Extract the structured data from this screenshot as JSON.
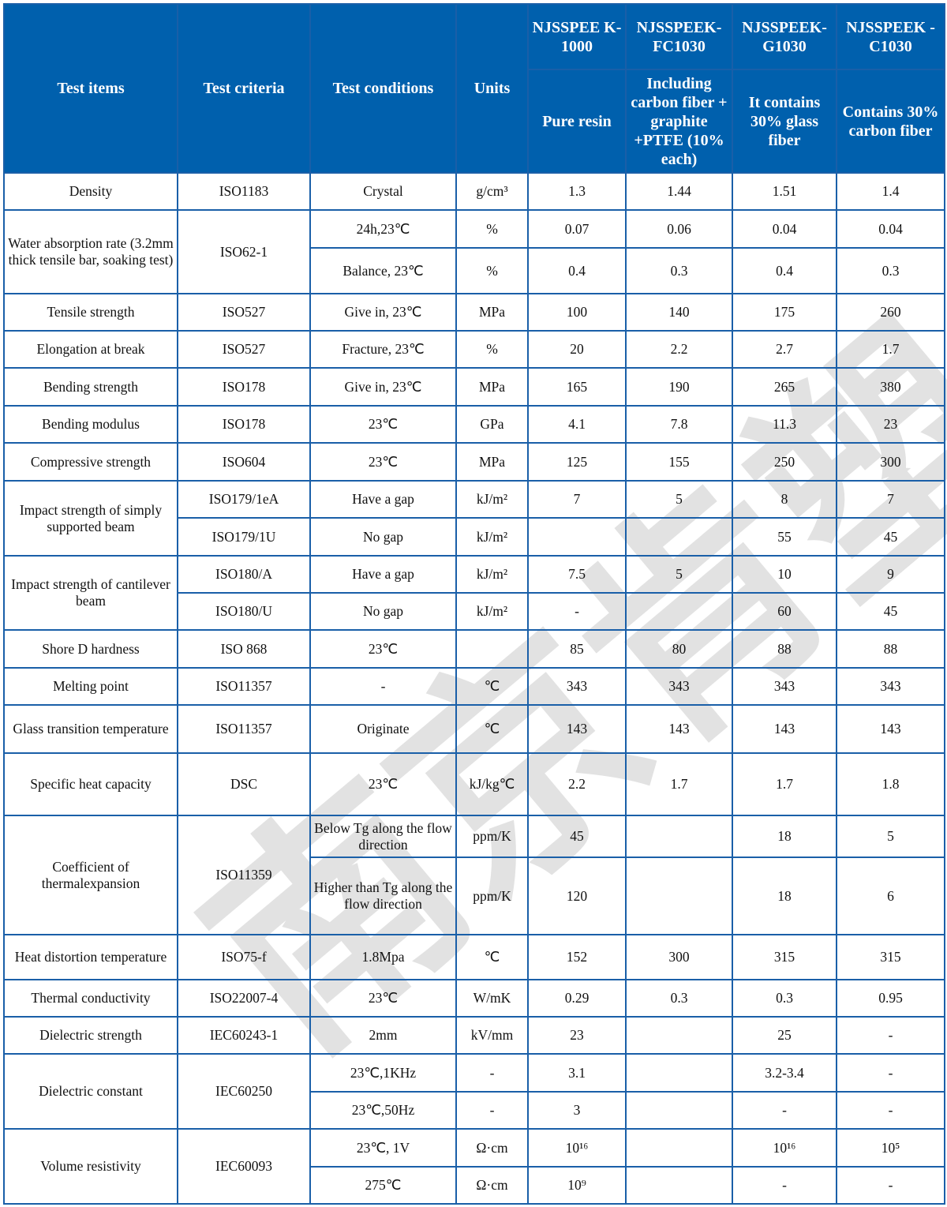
{
  "header": {
    "test_items": "Test items",
    "test_criteria": "Test criteria",
    "test_conditions": "Test conditions",
    "units": "Units",
    "products": [
      {
        "name": "NJSSPEEK-1000",
        "name_display": "NJSSPEE K-1000",
        "description": "Pure resin"
      },
      {
        "name": "NJSSPEEK-FC1030",
        "name_display": "NJSSPEEK- FC1030",
        "description": "Including carbon fiber + graphite +PTFE (10% each)"
      },
      {
        "name": "NJSSPEEK-G1030",
        "name_display": "NJSSPEEK- G1030",
        "description": "It contains 30% glass fiber"
      },
      {
        "name": "NJSSPEEK-C1030",
        "name_display": "NJSSPEEK -C1030",
        "description": "Contains 30% carbon fiber"
      }
    ]
  },
  "watermark": "南京肯塑",
  "groups": [
    {
      "item": "Density",
      "criteria": "ISO1183",
      "subrows": [
        {
          "condition": "Crystal",
          "unit": "g/cm³",
          "values": [
            "1.3",
            "1.44",
            "1.51",
            "1.4"
          ]
        }
      ]
    },
    {
      "item": "Water absorption rate (3.2mm thick tensile bar, soaking test)",
      "criteria": "ISO62-1",
      "subrows": [
        {
          "condition": "24h,23℃",
          "unit": "%",
          "values": [
            "0.07",
            "0.06",
            "0.04",
            "0.04"
          ]
        },
        {
          "condition": "Balance, 23℃",
          "unit": "%",
          "values": [
            "0.4",
            "0.3",
            "0.4",
            "0.3"
          ]
        }
      ]
    },
    {
      "item": "Tensile strength",
      "criteria": "ISO527",
      "subrows": [
        {
          "condition": "Give in, 23℃",
          "unit": "MPa",
          "values": [
            "100",
            "140",
            "175",
            "260"
          ]
        }
      ]
    },
    {
      "item": "Elongation at break",
      "criteria": "ISO527",
      "subrows": [
        {
          "condition": "Fracture, 23℃",
          "unit": "%",
          "values": [
            "20",
            "2.2",
            "2.7",
            "1.7"
          ]
        }
      ]
    },
    {
      "item": "Bending strength",
      "criteria": "ISO178",
      "subrows": [
        {
          "condition": "Give in, 23℃",
          "unit": "MPa",
          "values": [
            "165",
            "190",
            "265",
            "380"
          ]
        }
      ]
    },
    {
      "item": "Bending modulus",
      "criteria": "ISO178",
      "subrows": [
        {
          "condition": "23℃",
          "unit": "GPa",
          "values": [
            "4.1",
            "7.8",
            "11.3",
            "23"
          ]
        }
      ]
    },
    {
      "item": "Compressive strength",
      "criteria": "ISO604",
      "subrows": [
        {
          "condition": "23℃",
          "unit": "MPa",
          "values": [
            "125",
            "155",
            "250",
            "300"
          ]
        }
      ]
    },
    {
      "item": "Impact strength of simply supported beam",
      "subrows": [
        {
          "criteria": "ISO179/1eA",
          "condition": "Have a gap",
          "unit": "kJ/m²",
          "values": [
            "7",
            "5",
            "8",
            "7"
          ]
        },
        {
          "criteria": "ISO179/1U",
          "condition": "No gap",
          "unit": "kJ/m²",
          "values": [
            "",
            "",
            "55",
            "45"
          ]
        }
      ]
    },
    {
      "item": "Impact strength of cantilever beam",
      "subrows": [
        {
          "criteria": "ISO180/A",
          "condition": "Have a gap",
          "unit": "kJ/m²",
          "values": [
            "7.5",
            "5",
            "10",
            "9"
          ]
        },
        {
          "criteria": "ISO180/U",
          "condition": "No gap",
          "unit": "kJ/m²",
          "values": [
            "-",
            "",
            "60",
            "45"
          ]
        }
      ]
    },
    {
      "item": "Shore D hardness",
      "criteria": "ISO 868",
      "subrows": [
        {
          "condition": "23℃",
          "unit": "",
          "values": [
            "85",
            "80",
            "88",
            "88"
          ]
        }
      ]
    },
    {
      "item": "Melting point",
      "criteria": "ISO11357",
      "subrows": [
        {
          "condition": "-",
          "unit": "℃",
          "values": [
            "343",
            "343",
            "343",
            "343"
          ]
        }
      ]
    },
    {
      "item": "Glass transition temperature",
      "criteria": "ISO11357",
      "subrows": [
        {
          "condition": "Originate",
          "unit": "℃",
          "values": [
            "143",
            "143",
            "143",
            "143"
          ]
        }
      ]
    },
    {
      "item": "Specific heat capacity",
      "criteria": "DSC",
      "subrows": [
        {
          "condition": "23℃",
          "unit": "kJ/kg℃",
          "values": [
            "2.2",
            "1.7",
            "1.7",
            "1.8"
          ]
        }
      ]
    },
    {
      "item": "Coefficient of thermalexpansion",
      "criteria": "ISO11359",
      "subrows": [
        {
          "condition": "Below Tg along the flow direction",
          "unit": "ppm/K",
          "values": [
            "45",
            "",
            "18",
            "5"
          ]
        },
        {
          "condition": "Higher than Tg along the flow direction",
          "unit": "ppm/K",
          "values": [
            "120",
            "",
            "18",
            "6"
          ]
        }
      ]
    },
    {
      "item": "Heat distortion temperature",
      "criteria": "ISO75-f",
      "subrows": [
        {
          "condition": "1.8Mpa",
          "unit": "℃",
          "values": [
            "152",
            "300",
            "315",
            "315"
          ]
        }
      ]
    },
    {
      "item": "Thermal conductivity",
      "criteria": "ISO22007-4",
      "subrows": [
        {
          "condition": "23℃",
          "unit": "W/mK",
          "values": [
            "0.29",
            "0.3",
            "0.3",
            "0.95"
          ]
        }
      ]
    },
    {
      "item": "Dielectric strength",
      "criteria": "IEC60243-1",
      "subrows": [
        {
          "condition": "2mm",
          "unit": "kV/mm",
          "values": [
            "23",
            "",
            "25",
            "-"
          ]
        }
      ]
    },
    {
      "item": "Dielectric constant",
      "criteria": "IEC60250",
      "subrows": [
        {
          "condition": "23℃,1KHz",
          "unit": "-",
          "values": [
            "3.1",
            "",
            "3.2-3.4",
            "-"
          ]
        },
        {
          "condition": "23℃,50Hz",
          "unit": "-",
          "values": [
            "3",
            "",
            "-",
            "-"
          ]
        }
      ]
    },
    {
      "item": "Volume resistivity",
      "criteria": "IEC60093",
      "subrows": [
        {
          "condition": "23℃, 1V",
          "unit": "Ω·cm",
          "values": [
            "10¹⁶",
            "",
            "10¹⁶",
            "10⁵"
          ]
        },
        {
          "condition": "275℃",
          "unit": "Ω·cm",
          "values": [
            "10⁹",
            "",
            "-",
            "-"
          ]
        }
      ]
    }
  ]
}
